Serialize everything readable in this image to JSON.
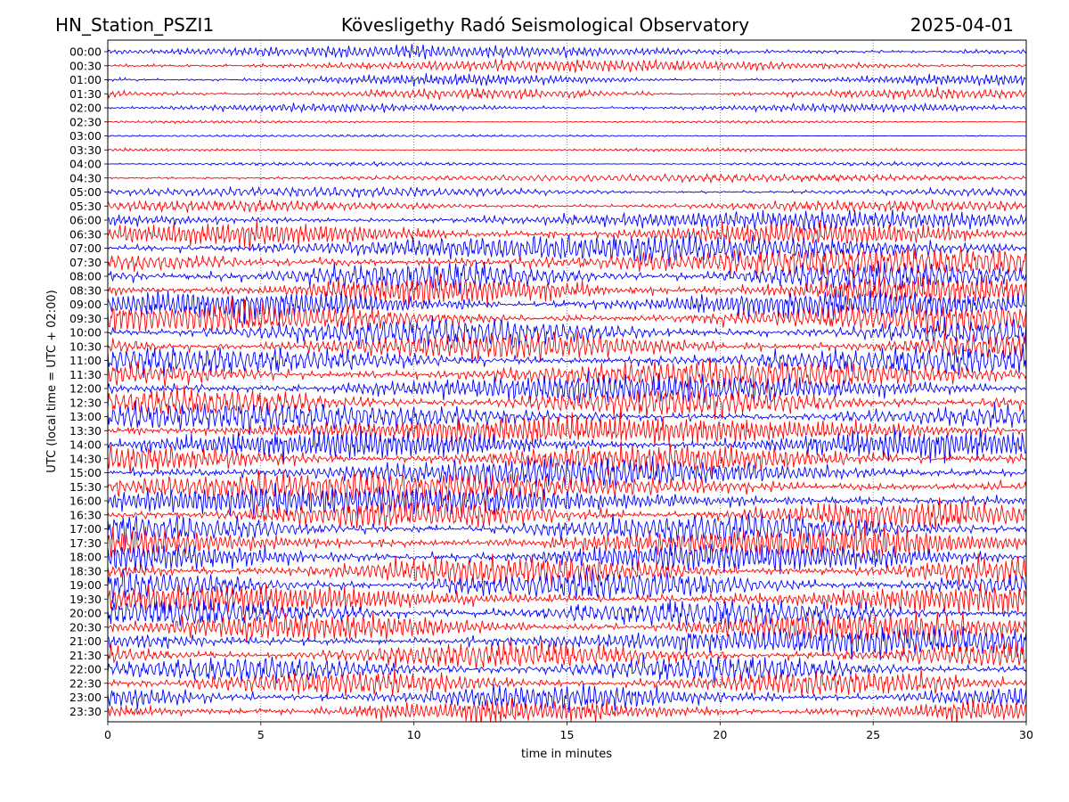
{
  "header": {
    "station": "HN_Station_PSZI1",
    "observatory": "Kövesligethy Radó Seismological Observatory",
    "date": "2025-04-01"
  },
  "chart_data": {
    "type": "line",
    "title": "Kövesligethy Radó Seismological Observatory",
    "xlabel": "time in minutes",
    "ylabel": "UTC (local time = UTC + 02:00)",
    "xlim": [
      0,
      30
    ],
    "x_ticks": [
      "0",
      "5",
      "10",
      "15",
      "20",
      "25",
      "30"
    ],
    "y_ticks": [
      "00:00",
      "00:30",
      "01:00",
      "01:30",
      "02:00",
      "02:30",
      "03:00",
      "03:30",
      "04:00",
      "04:30",
      "05:00",
      "05:30",
      "06:00",
      "06:30",
      "07:00",
      "07:30",
      "08:00",
      "08:30",
      "09:00",
      "09:30",
      "10:00",
      "10:30",
      "11:00",
      "11:30",
      "12:00",
      "12:30",
      "13:00",
      "13:30",
      "14:00",
      "14:30",
      "15:00",
      "15:30",
      "16:00",
      "16:30",
      "17:00",
      "17:30",
      "18:00",
      "18:30",
      "19:00",
      "19:30",
      "20:00",
      "20:30",
      "21:00",
      "21:30",
      "22:00",
      "22:30",
      "23:00",
      "23:30"
    ],
    "trace_colors": [
      "#ff0000",
      "#0000ff"
    ],
    "grid": "dotted vertical lines at 5-minute marks",
    "relative_amplitude": [
      1.6,
      1.6,
      1.4,
      1.4,
      1.1,
      0.35,
      0.3,
      0.45,
      0.5,
      1.0,
      1.3,
      1.5,
      2.4,
      3.2,
      3.6,
      3.8,
      3.8,
      3.8,
      3.8,
      3.8,
      3.7,
      3.7,
      3.7,
      3.8,
      3.8,
      3.8,
      3.8,
      3.8,
      3.9,
      3.9,
      3.9,
      3.9,
      3.9,
      3.9,
      3.9,
      3.9,
      3.9,
      3.9,
      3.9,
      3.9,
      3.8,
      3.8,
      3.7,
      3.6,
      3.5,
      3.4,
      3.2,
      3.0
    ]
  }
}
